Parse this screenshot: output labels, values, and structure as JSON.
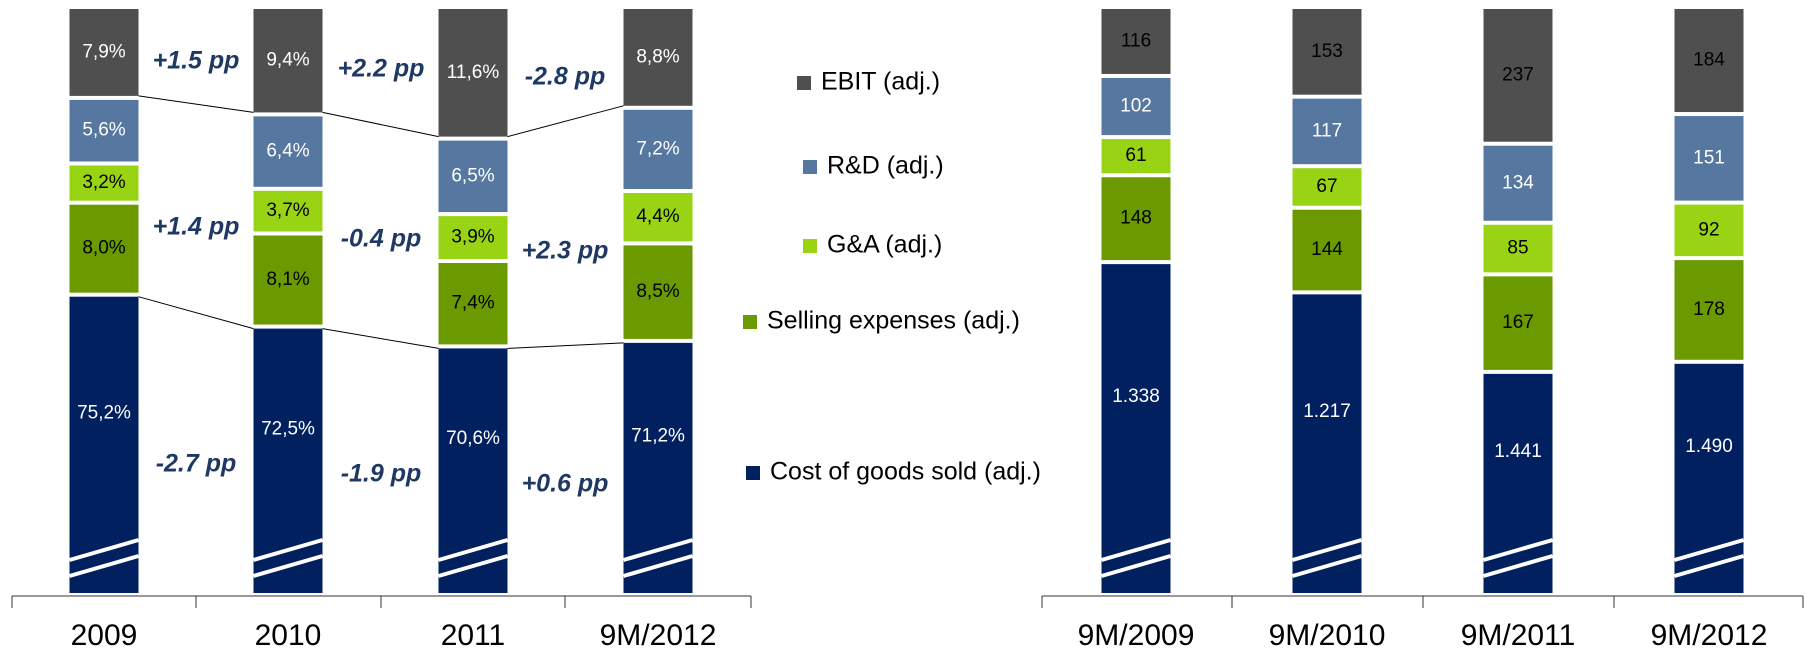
{
  "chart_data": [
    {
      "type": "bar",
      "stacked": true,
      "categories": [
        "2009",
        "2010",
        "2011",
        "9M/2012"
      ],
      "series": [
        {
          "name": "Cost of goods sold (adj.)",
          "color": "#002060",
          "values": [
            75.2,
            72.5,
            70.6,
            71.2
          ],
          "value_labels": [
            "75,2%",
            "72,5%",
            "70,6%",
            "71,2%"
          ]
        },
        {
          "name": "Selling expenses (adj.)",
          "color": "#6a9a00",
          "values": [
            8.0,
            8.1,
            7.4,
            8.5
          ],
          "value_labels": [
            "8,0%",
            "8,1%",
            "7,4%",
            "8,5%"
          ]
        },
        {
          "name": "G&A (adj.)",
          "color": "#99d414",
          "values": [
            3.2,
            3.7,
            3.9,
            4.4
          ],
          "value_labels": [
            "3,2%",
            "3,7%",
            "3,9%",
            "4,4%"
          ]
        },
        {
          "name": "R&D (adj.)",
          "color": "#56779f",
          "values": [
            5.6,
            6.4,
            6.5,
            7.2
          ],
          "value_labels": [
            "5,6%",
            "6,4%",
            "6,5%",
            "7,2%"
          ]
        },
        {
          "name": "EBIT (adj.)",
          "color": "#4f4f4f",
          "values": [
            7.9,
            9.4,
            11.6,
            8.8
          ],
          "value_labels": [
            "7,9%",
            "9,4%",
            "11,6%",
            "8,8%"
          ]
        }
      ],
      "annotations": [
        [
          "+1.5 pp",
          "+1.4 pp",
          "-2.7 pp"
        ],
        [
          "+2.2 pp",
          "-0.4 pp",
          "-1.9 pp"
        ],
        [
          "-2.8 pp",
          "+2.3 pp",
          "+0.6 pp"
        ]
      ]
    },
    {
      "type": "bar",
      "stacked": true,
      "categories": [
        "9M/2009",
        "9M/2010",
        "9M/2011",
        "9M/2012"
      ],
      "series": [
        {
          "color": "#002060",
          "values": [
            1338,
            1217,
            1441,
            1490
          ],
          "value_labels": [
            "1.338",
            "1.217",
            "1.441",
            "1.490"
          ]
        },
        {
          "color": "#6a9a00",
          "values": [
            148,
            144,
            167,
            178
          ]
        },
        {
          "color": "#99d414",
          "values": [
            61,
            67,
            85,
            92
          ]
        },
        {
          "color": "#56779f",
          "values": [
            102,
            117,
            134,
            151
          ]
        },
        {
          "color": "#4f4f4f",
          "values": [
            116,
            153,
            237,
            184
          ]
        }
      ]
    }
  ]
}
